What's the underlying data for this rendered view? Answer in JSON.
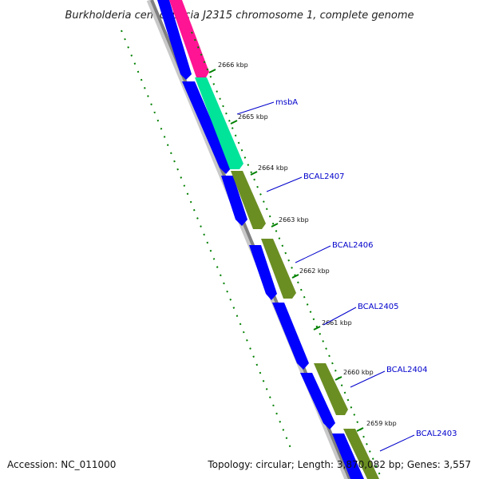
{
  "title": "Burkholderia cenocepacia J2315 chromosome 1, complete genome",
  "footer": {
    "accession": "Accession: NC_011000",
    "summary": "Topology: circular; Length: 3,870,082 bp; Genes: 3,557"
  },
  "colors": {
    "backbone": "#808080",
    "reverse_strand": "#0000ff",
    "hypothetical": "#6b8e23",
    "msbA": "#00e49a",
    "top_gene": "#ff1493",
    "ticks": "#008000",
    "labels": "#0000cc"
  },
  "ticks": [
    {
      "label": "2666 kbp"
    },
    {
      "label": "2665 kbp"
    },
    {
      "label": "2664 kbp"
    },
    {
      "label": "2663 kbp"
    },
    {
      "label": "2662 kbp"
    },
    {
      "label": "2661 kbp"
    },
    {
      "label": "2660 kbp"
    },
    {
      "label": "2659 kbp"
    }
  ],
  "gene_labels": [
    {
      "label": "msbA"
    },
    {
      "label": "BCAL2407"
    },
    {
      "label": "BCAL2406"
    },
    {
      "label": "BCAL2405"
    },
    {
      "label": "BCAL2404"
    },
    {
      "label": "BCAL2403"
    }
  ]
}
